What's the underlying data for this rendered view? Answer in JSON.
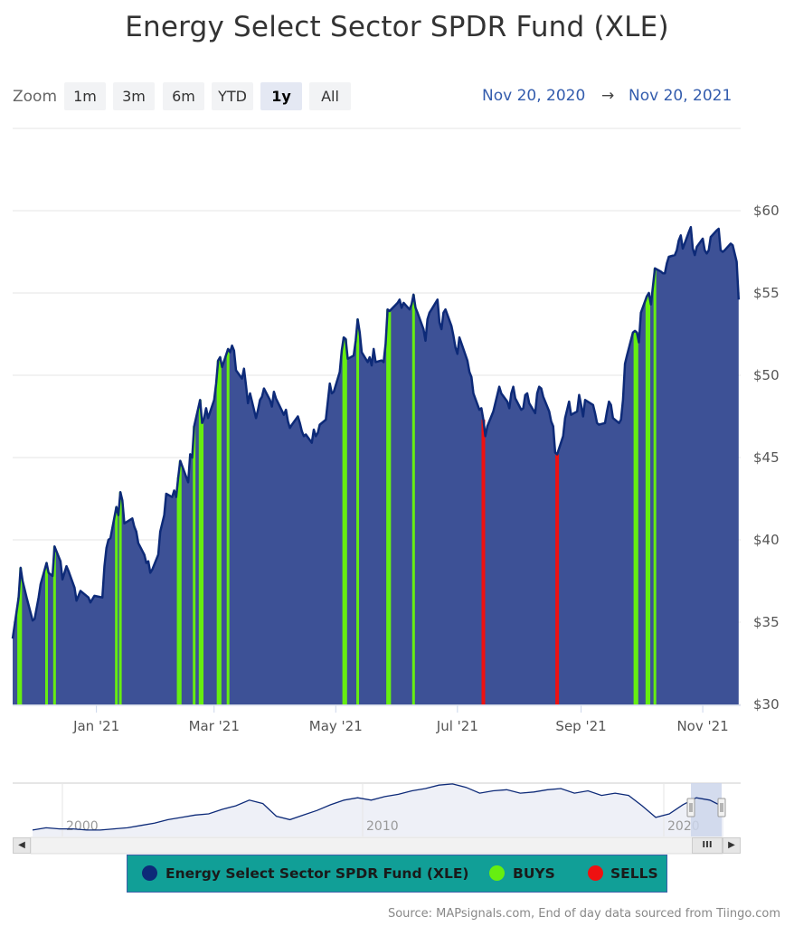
{
  "title": "Energy Select Sector SPDR Fund (XLE)",
  "zoom": {
    "label": "Zoom",
    "buttons": [
      "1m",
      "3m",
      "6m",
      "YTD",
      "1y",
      "All"
    ],
    "active": "1y"
  },
  "range": {
    "from": "Nov 20, 2020",
    "arrow": "→",
    "to": "Nov 20, 2021"
  },
  "legend": {
    "items": [
      {
        "label": "Energy Select Sector SPDR Fund (XLE)",
        "color": "#0d2a78"
      },
      {
        "label": "BUYS",
        "color": "#66ee11"
      },
      {
        "label": "SELLS",
        "color": "#ee1111"
      }
    ]
  },
  "source": "Source: MAPsignals.com, End of day data sourced from Tiingo.com",
  "scrollbar": {
    "thumb_glyph": "III"
  },
  "colors": {
    "area": "#3d5196",
    "line": "#0d2a78",
    "buy": "#66ee11",
    "sell": "#ee1111",
    "navigator_band": "#ccd6eb"
  },
  "chart_data": {
    "type": "area",
    "title": "Energy Select Sector SPDR Fund (XLE)",
    "xlabel": "",
    "ylabel": "",
    "ylim": [
      30,
      62
    ],
    "yticks": [
      30,
      35,
      40,
      45,
      50,
      55,
      60
    ],
    "ytick_labels": [
      "$30",
      "$35",
      "$40",
      "$45",
      "$50",
      "$55",
      "$60"
    ],
    "xticks": [
      {
        "date": "2021-01-01",
        "label": "Jan '21"
      },
      {
        "date": "2021-03-01",
        "label": "Mar '21"
      },
      {
        "date": "2021-05-01",
        "label": "May '21"
      },
      {
        "date": "2021-07-01",
        "label": "Jul '21"
      },
      {
        "date": "2021-09-01",
        "label": "Sep '21"
      },
      {
        "date": "2021-11-01",
        "label": "Nov '21"
      }
    ],
    "grid": true,
    "series": [
      {
        "name": "Energy Select Sector SPDR Fund (XLE)",
        "points": [
          [
            "2020-11-20",
            34.0
          ],
          [
            "2020-11-23",
            36.5
          ],
          [
            "2020-11-24",
            38.3
          ],
          [
            "2020-11-25",
            37.5
          ],
          [
            "2020-11-27",
            36.5
          ],
          [
            "2020-11-30",
            35.1
          ],
          [
            "2020-12-01",
            35.2
          ],
          [
            "2020-12-03",
            36.5
          ],
          [
            "2020-12-04",
            37.3
          ],
          [
            "2020-12-07",
            38.6
          ],
          [
            "2020-12-08",
            38.0
          ],
          [
            "2020-12-10",
            37.8
          ],
          [
            "2020-12-11",
            39.6
          ],
          [
            "2020-12-14",
            38.7
          ],
          [
            "2020-12-15",
            37.6
          ],
          [
            "2020-12-17",
            38.4
          ],
          [
            "2020-12-18",
            38.1
          ],
          [
            "2020-12-21",
            37.1
          ],
          [
            "2020-12-22",
            36.3
          ],
          [
            "2020-12-24",
            36.9
          ],
          [
            "2020-12-28",
            36.5
          ],
          [
            "2020-12-29",
            36.2
          ],
          [
            "2020-12-31",
            36.6
          ],
          [
            "2021-01-04",
            36.5
          ],
          [
            "2021-01-05",
            38.4
          ],
          [
            "2021-01-06",
            39.5
          ],
          [
            "2021-01-07",
            40.0
          ],
          [
            "2021-01-08",
            40.1
          ],
          [
            "2021-01-11",
            42.0
          ],
          [
            "2021-01-12",
            41.5
          ],
          [
            "2021-01-13",
            42.9
          ],
          [
            "2021-01-14",
            42.4
          ],
          [
            "2021-01-15",
            41.0
          ],
          [
            "2021-01-19",
            41.3
          ],
          [
            "2021-01-20",
            40.8
          ],
          [
            "2021-01-21",
            40.5
          ],
          [
            "2021-01-22",
            39.8
          ],
          [
            "2021-01-25",
            39.1
          ],
          [
            "2021-01-26",
            38.6
          ],
          [
            "2021-01-27",
            38.7
          ],
          [
            "2021-01-28",
            38.0
          ],
          [
            "2021-01-29",
            38.2
          ],
          [
            "2021-02-01",
            39.1
          ],
          [
            "2021-02-02",
            40.5
          ],
          [
            "2021-02-03",
            41.0
          ],
          [
            "2021-02-04",
            41.5
          ],
          [
            "2021-02-05",
            42.8
          ],
          [
            "2021-02-08",
            42.6
          ],
          [
            "2021-02-09",
            43.0
          ],
          [
            "2021-02-10",
            42.6
          ],
          [
            "2021-02-11",
            43.8
          ],
          [
            "2021-02-12",
            44.8
          ],
          [
            "2021-02-16",
            43.5
          ],
          [
            "2021-02-17",
            45.2
          ],
          [
            "2021-02-18",
            45.0
          ],
          [
            "2021-02-19",
            46.9
          ],
          [
            "2021-02-22",
            48.5
          ],
          [
            "2021-02-23",
            47.1
          ],
          [
            "2021-02-24",
            47.4
          ],
          [
            "2021-02-25",
            48.0
          ],
          [
            "2021-02-26",
            47.4
          ],
          [
            "2021-03-01",
            48.5
          ],
          [
            "2021-03-02",
            49.5
          ],
          [
            "2021-03-03",
            50.9
          ],
          [
            "2021-03-04",
            51.1
          ],
          [
            "2021-03-05",
            50.5
          ],
          [
            "2021-03-08",
            51.6
          ],
          [
            "2021-03-09",
            51.4
          ],
          [
            "2021-03-10",
            51.8
          ],
          [
            "2021-03-11",
            51.5
          ],
          [
            "2021-03-12",
            50.3
          ],
          [
            "2021-03-15",
            49.8
          ],
          [
            "2021-03-16",
            50.4
          ],
          [
            "2021-03-17",
            49.4
          ],
          [
            "2021-03-18",
            48.3
          ],
          [
            "2021-03-19",
            48.9
          ],
          [
            "2021-03-22",
            47.4
          ],
          [
            "2021-03-23",
            47.9
          ],
          [
            "2021-03-24",
            48.5
          ],
          [
            "2021-03-25",
            48.7
          ],
          [
            "2021-03-26",
            49.2
          ],
          [
            "2021-03-29",
            48.5
          ],
          [
            "2021-03-30",
            48.1
          ],
          [
            "2021-03-31",
            49.0
          ],
          [
            "2021-04-01",
            48.6
          ],
          [
            "2021-04-05",
            47.6
          ],
          [
            "2021-04-06",
            47.9
          ],
          [
            "2021-04-07",
            47.2
          ],
          [
            "2021-04-08",
            46.8
          ],
          [
            "2021-04-09",
            47.0
          ],
          [
            "2021-04-12",
            47.5
          ],
          [
            "2021-04-13",
            47.1
          ],
          [
            "2021-04-14",
            46.6
          ],
          [
            "2021-04-15",
            46.3
          ],
          [
            "2021-04-16",
            46.4
          ],
          [
            "2021-04-19",
            45.9
          ],
          [
            "2021-04-20",
            46.7
          ],
          [
            "2021-04-21",
            46.3
          ],
          [
            "2021-04-22",
            46.5
          ],
          [
            "2021-04-23",
            47.0
          ],
          [
            "2021-04-26",
            47.3
          ],
          [
            "2021-04-27",
            48.4
          ],
          [
            "2021-04-28",
            49.5
          ],
          [
            "2021-04-29",
            48.9
          ],
          [
            "2021-04-30",
            49.0
          ],
          [
            "2021-05-03",
            50.2
          ],
          [
            "2021-05-04",
            51.5
          ],
          [
            "2021-05-05",
            52.3
          ],
          [
            "2021-05-06",
            52.2
          ],
          [
            "2021-05-07",
            51.0
          ],
          [
            "2021-05-10",
            51.2
          ],
          [
            "2021-05-11",
            52.1
          ],
          [
            "2021-05-12",
            53.4
          ],
          [
            "2021-05-13",
            52.6
          ],
          [
            "2021-05-14",
            51.4
          ],
          [
            "2021-05-17",
            50.8
          ],
          [
            "2021-05-18",
            51.1
          ],
          [
            "2021-05-19",
            50.6
          ],
          [
            "2021-05-20",
            51.6
          ],
          [
            "2021-05-21",
            50.8
          ],
          [
            "2021-05-24",
            50.9
          ],
          [
            "2021-05-25",
            50.8
          ],
          [
            "2021-05-26",
            51.9
          ],
          [
            "2021-05-27",
            54.0
          ],
          [
            "2021-05-28",
            53.9
          ],
          [
            "2021-06-01",
            54.4
          ],
          [
            "2021-06-02",
            54.6
          ],
          [
            "2021-06-03",
            54.1
          ],
          [
            "2021-06-04",
            54.4
          ],
          [
            "2021-06-07",
            54.0
          ],
          [
            "2021-06-08",
            54.3
          ],
          [
            "2021-06-09",
            54.9
          ],
          [
            "2021-06-10",
            54.1
          ],
          [
            "2021-06-11",
            53.8
          ],
          [
            "2021-06-14",
            52.8
          ],
          [
            "2021-06-15",
            52.1
          ],
          [
            "2021-06-16",
            53.4
          ],
          [
            "2021-06-17",
            53.8
          ],
          [
            "2021-06-18",
            54.0
          ],
          [
            "2021-06-21",
            54.6
          ],
          [
            "2021-06-22",
            53.2
          ],
          [
            "2021-06-23",
            52.8
          ],
          [
            "2021-06-24",
            53.8
          ],
          [
            "2021-06-25",
            54.0
          ],
          [
            "2021-06-28",
            53.0
          ],
          [
            "2021-06-29",
            52.4
          ],
          [
            "2021-06-30",
            51.7
          ],
          [
            "2021-07-01",
            51.3
          ],
          [
            "2021-07-02",
            52.3
          ],
          [
            "2021-07-06",
            50.9
          ],
          [
            "2021-07-07",
            50.2
          ],
          [
            "2021-07-08",
            49.9
          ],
          [
            "2021-07-09",
            48.9
          ],
          [
            "2021-07-12",
            47.9
          ],
          [
            "2021-07-13",
            48.0
          ],
          [
            "2021-07-14",
            47.3
          ],
          [
            "2021-07-15",
            46.3
          ],
          [
            "2021-07-16",
            46.9
          ],
          [
            "2021-07-19",
            47.8
          ],
          [
            "2021-07-20",
            48.3
          ],
          [
            "2021-07-21",
            48.8
          ],
          [
            "2021-07-22",
            49.3
          ],
          [
            "2021-07-23",
            48.9
          ],
          [
            "2021-07-26",
            48.4
          ],
          [
            "2021-07-27",
            48.0
          ],
          [
            "2021-07-28",
            48.9
          ],
          [
            "2021-07-29",
            49.3
          ],
          [
            "2021-07-30",
            48.6
          ],
          [
            "2021-08-02",
            47.9
          ],
          [
            "2021-08-03",
            48.0
          ],
          [
            "2021-08-04",
            48.8
          ],
          [
            "2021-08-05",
            48.9
          ],
          [
            "2021-08-06",
            48.3
          ],
          [
            "2021-08-09",
            47.7
          ],
          [
            "2021-08-10",
            48.9
          ],
          [
            "2021-08-11",
            49.3
          ],
          [
            "2021-08-12",
            49.2
          ],
          [
            "2021-08-13",
            48.7
          ],
          [
            "2021-08-16",
            47.8
          ],
          [
            "2021-08-17",
            47.2
          ],
          [
            "2021-08-18",
            46.9
          ],
          [
            "2021-08-19",
            45.3
          ],
          [
            "2021-08-20",
            45.2
          ],
          [
            "2021-08-23",
            46.3
          ],
          [
            "2021-08-24",
            47.4
          ],
          [
            "2021-08-25",
            47.9
          ],
          [
            "2021-08-26",
            48.4
          ],
          [
            "2021-08-27",
            47.6
          ],
          [
            "2021-08-30",
            47.8
          ],
          [
            "2021-08-31",
            48.8
          ],
          [
            "2021-09-01",
            48.2
          ],
          [
            "2021-09-02",
            47.5
          ],
          [
            "2021-09-03",
            48.5
          ],
          [
            "2021-09-07",
            48.2
          ],
          [
            "2021-09-08",
            47.7
          ],
          [
            "2021-09-09",
            47.1
          ],
          [
            "2021-09-10",
            47.0
          ],
          [
            "2021-09-13",
            47.1
          ],
          [
            "2021-09-14",
            47.8
          ],
          [
            "2021-09-15",
            48.4
          ],
          [
            "2021-09-16",
            48.2
          ],
          [
            "2021-09-17",
            47.4
          ],
          [
            "2021-09-20",
            47.1
          ],
          [
            "2021-09-21",
            47.3
          ],
          [
            "2021-09-22",
            48.5
          ],
          [
            "2021-09-23",
            50.7
          ],
          [
            "2021-09-24",
            51.2
          ],
          [
            "2021-09-27",
            52.6
          ],
          [
            "2021-09-28",
            52.7
          ],
          [
            "2021-09-29",
            52.6
          ],
          [
            "2021-09-30",
            52.0
          ],
          [
            "2021-10-01",
            53.8
          ],
          [
            "2021-10-04",
            54.8
          ],
          [
            "2021-10-05",
            55.0
          ],
          [
            "2021-10-06",
            54.3
          ],
          [
            "2021-10-07",
            55.4
          ],
          [
            "2021-10-08",
            56.5
          ],
          [
            "2021-10-11",
            56.3
          ],
          [
            "2021-10-12",
            56.2
          ],
          [
            "2021-10-13",
            56.2
          ],
          [
            "2021-10-14",
            56.8
          ],
          [
            "2021-10-15",
            57.2
          ],
          [
            "2021-10-18",
            57.3
          ],
          [
            "2021-10-19",
            57.6
          ],
          [
            "2021-10-20",
            58.2
          ],
          [
            "2021-10-21",
            58.5
          ],
          [
            "2021-10-22",
            57.7
          ],
          [
            "2021-10-25",
            58.7
          ],
          [
            "2021-10-26",
            59.0
          ],
          [
            "2021-10-27",
            57.7
          ],
          [
            "2021-10-28",
            57.3
          ],
          [
            "2021-10-29",
            57.8
          ],
          [
            "2021-11-01",
            58.3
          ],
          [
            "2021-11-02",
            57.6
          ],
          [
            "2021-11-03",
            57.4
          ],
          [
            "2021-11-04",
            57.6
          ],
          [
            "2021-11-05",
            58.4
          ],
          [
            "2021-11-08",
            58.8
          ],
          [
            "2021-11-09",
            58.9
          ],
          [
            "2021-11-10",
            57.6
          ],
          [
            "2021-11-11",
            57.5
          ],
          [
            "2021-11-12",
            57.6
          ],
          [
            "2021-11-15",
            58.0
          ],
          [
            "2021-11-16",
            57.9
          ],
          [
            "2021-11-17",
            57.4
          ],
          [
            "2021-11-18",
            56.9
          ],
          [
            "2021-11-19",
            54.6
          ]
        ]
      }
    ],
    "buys": [
      "2020-11-23",
      "2020-11-24",
      "2020-12-07",
      "2020-12-11",
      "2021-01-11",
      "2021-01-13",
      "2021-02-11",
      "2021-02-12",
      "2021-02-19",
      "2021-02-22",
      "2021-02-23",
      "2021-03-03",
      "2021-03-04",
      "2021-03-08",
      "2021-05-05",
      "2021-05-06",
      "2021-05-12",
      "2021-05-27",
      "2021-05-28",
      "2021-06-09",
      "2021-09-28",
      "2021-09-29",
      "2021-10-04",
      "2021-10-05",
      "2021-10-08"
    ],
    "sells": [
      "2021-07-14",
      "2021-08-20"
    ],
    "navigator": {
      "x_labels": [
        "2000",
        "2010",
        "2020"
      ],
      "values": [
        34,
        36,
        35,
        35,
        34,
        34,
        35,
        36,
        38,
        40,
        43,
        45,
        47,
        48,
        52,
        55,
        60,
        57,
        46,
        43,
        47,
        51,
        56,
        60,
        62,
        60,
        63,
        65,
        68,
        70,
        73,
        74,
        71,
        66,
        68,
        69,
        66,
        67,
        69,
        70,
        66,
        68,
        64,
        66,
        64,
        55,
        45,
        48,
        56,
        62,
        60,
        54
      ]
    }
  }
}
